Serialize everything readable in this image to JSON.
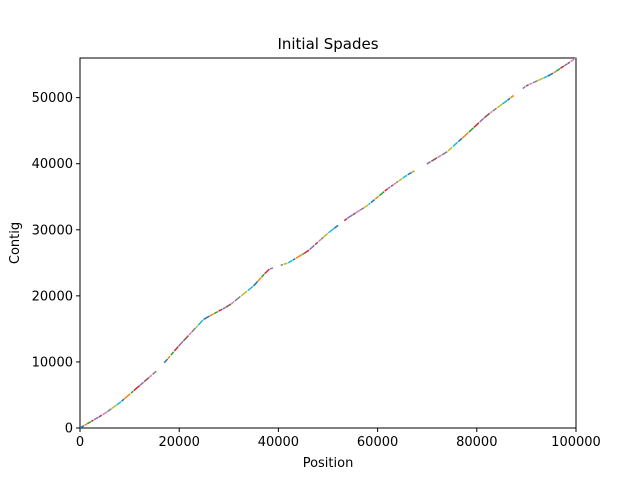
{
  "chart_data": {
    "type": "line",
    "title": "Initial Spades",
    "xlabel": "Position",
    "ylabel": "Contig",
    "xlim": [
      0,
      100000
    ],
    "ylim": [
      0,
      56000
    ],
    "x_ticks": [
      0,
      20000,
      40000,
      60000,
      80000,
      100000
    ],
    "y_ticks": [
      0,
      10000,
      20000,
      30000,
      40000,
      50000
    ],
    "grid": false,
    "legend": "none",
    "series_colors": [
      "#1f77b4",
      "#ff7f0e",
      "#2ca02c",
      "#d62728",
      "#9467bd",
      "#8c564b",
      "#e377c2",
      "#7f7f7f",
      "#bcbd22",
      "#17becf"
    ],
    "trend": [
      [
        0,
        0
      ],
      [
        5000,
        2200
      ],
      [
        8000,
        3800
      ],
      [
        16000,
        9000
      ],
      [
        20000,
        12500
      ],
      [
        25000,
        16500
      ],
      [
        30000,
        18500
      ],
      [
        35000,
        21500
      ],
      [
        38000,
        24000
      ],
      [
        42000,
        25000
      ],
      [
        46000,
        26800
      ],
      [
        50000,
        29500
      ],
      [
        54000,
        31800
      ],
      [
        58000,
        33700
      ],
      [
        62000,
        36200
      ],
      [
        66000,
        38300
      ],
      [
        70000,
        40000
      ],
      [
        74000,
        41800
      ],
      [
        78000,
        44500
      ],
      [
        82000,
        47300
      ],
      [
        86000,
        49500
      ],
      [
        90000,
        51800
      ],
      [
        95000,
        53500
      ],
      [
        100000,
        56000
      ]
    ],
    "gaps": [
      [
        15500,
        16500
      ],
      [
        39000,
        39800
      ],
      [
        52500,
        53200
      ],
      [
        68000,
        68800
      ],
      [
        88500,
        89200
      ]
    ]
  }
}
